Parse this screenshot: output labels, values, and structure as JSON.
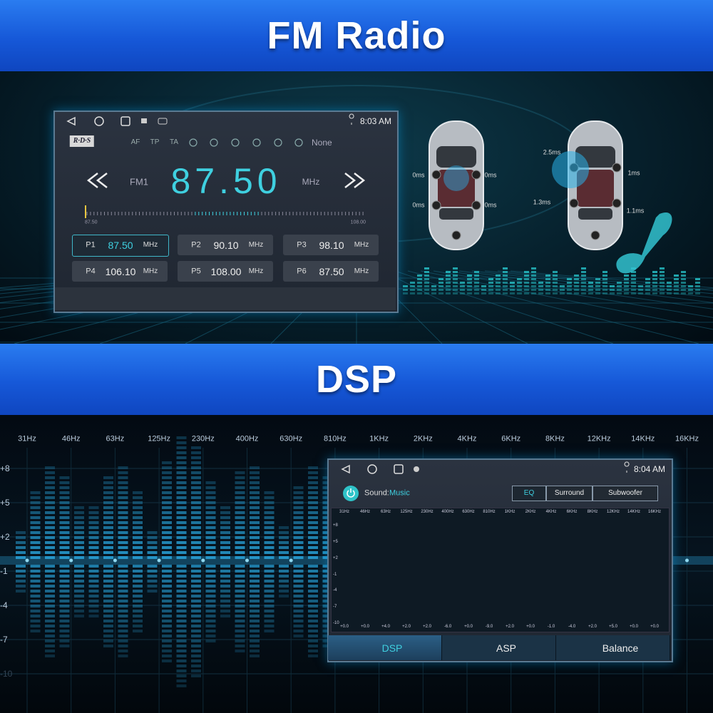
{
  "banners": {
    "radio": "FM Radio",
    "dsp": "DSP"
  },
  "radio": {
    "time": "8:03 AM",
    "rds": "R·D·S",
    "toggles": [
      "AF",
      "TP",
      "TA"
    ],
    "pty": "None",
    "band": "FM1",
    "frequency": "87.50",
    "unit": "MHz",
    "scale": [
      "87.50",
      "108.00"
    ],
    "presets": [
      {
        "name": "P1",
        "frequency": "87.50",
        "unit": "MHz"
      },
      {
        "name": "P2",
        "frequency": "90.10",
        "unit": "MHz"
      },
      {
        "name": "P3",
        "frequency": "98.10",
        "unit": "MHz"
      },
      {
        "name": "P4",
        "frequency": "106.10",
        "unit": "MHz"
      },
      {
        "name": "P5",
        "frequency": "108.00",
        "unit": "MHz"
      },
      {
        "name": "P6",
        "frequency": "87.50",
        "unit": "MHz"
      }
    ]
  },
  "delays": {
    "left": [
      "0ms",
      "0ms",
      "0ms",
      "0ms"
    ],
    "right": [
      "2.5ms",
      "1ms",
      "1.3ms",
      "1.1ms"
    ]
  },
  "dsp_background": {
    "bands": [
      "31Hz",
      "46Hz",
      "63Hz",
      "125Hz",
      "230Hz",
      "400Hz",
      "630Hz",
      "810Hz",
      "1KHz",
      "2KHz",
      "4KHz",
      "6KHz",
      "8KHz",
      "12KHz",
      "14KHz",
      "16KHz"
    ],
    "levels": [
      "+8",
      "+5",
      "+2",
      "-1",
      "-4",
      "-7",
      "-10"
    ]
  },
  "dsp": {
    "time": "8:04 AM",
    "sound_label": "Sound:",
    "sound_mode": "Music",
    "tabs": [
      "EQ",
      "Surround",
      "Subwoofer"
    ],
    "bands": [
      "31Hz",
      "46Hz",
      "63Hz",
      "125Hz",
      "230Hz",
      "400Hz",
      "630Hz",
      "810Hz",
      "1KHz",
      "2KHz",
      "4KHz",
      "6KHz",
      "8KHz",
      "12KHz",
      "14KHz",
      "16KHz"
    ],
    "levels": [
      "+8",
      "+5",
      "+2",
      "-1",
      "-4",
      "-7",
      "-10"
    ],
    "gains": [
      "+0.0",
      "+0.0",
      "+4.0",
      "+2.0",
      "+2.0",
      "-6.0",
      "+0.0",
      "-9.0",
      "+2.0",
      "+0.0",
      "-1.0",
      "-4.0",
      "+2.0",
      "+5.0",
      "+0.0",
      "+0.0"
    ],
    "buttons": [
      "DSP",
      "ASP",
      "Balance"
    ]
  }
}
